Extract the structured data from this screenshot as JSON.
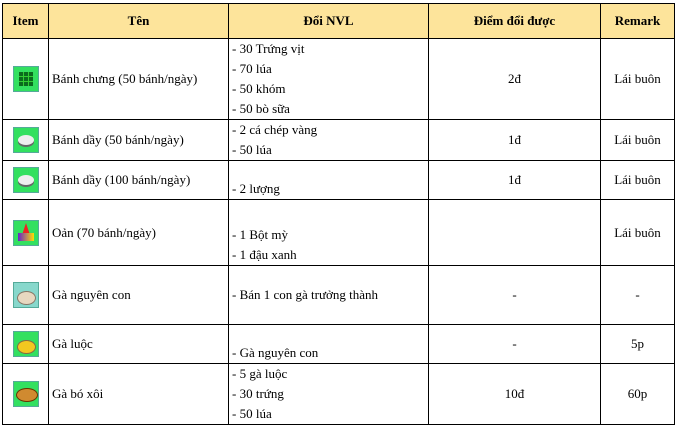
{
  "headers": {
    "item": "Item",
    "ten": "Tên",
    "nvl": "Đổi NVL",
    "diem": "Điểm đổi được",
    "remark": "Remark"
  },
  "rows": [
    {
      "icon": "banh-chung-icon",
      "ten": "Bánh chưng (50 bánh/ngày)",
      "nvl": [
        "- 30 Trứng vịt",
        "- 70 lúa",
        "- 50 khóm",
        "- 50 bò sữa"
      ],
      "diem": "2đ",
      "remark": "Lái buôn"
    },
    {
      "icon": "banh-day-icon",
      "ten": "Bánh dầy  (50 bánh/ngày)",
      "nvl": [
        "- 2 cá chép vàng",
        "- 50 lúa"
      ],
      "diem": "1đ",
      "remark": "Lái buôn"
    },
    {
      "icon": "banh-day-icon",
      "ten": "Bánh dầy  (100 bánh/ngày)",
      "nvl": [
        "- 2 lượng"
      ],
      "diem": "1đ",
      "remark": "Lái buôn"
    },
    {
      "icon": "oan-cake-icon",
      "ten": "Oản (70 bánh/ngày)",
      "nvl": [
        "- 1 Bột mỳ",
        "- 1 đậu xanh"
      ],
      "diem": "",
      "remark": "Lái buôn"
    },
    {
      "icon": "raw-chicken-icon",
      "ten": "Gà nguyên con",
      "nvl": [
        "- Bán 1 con gà trưởng thành"
      ],
      "diem": "-",
      "remark": "-"
    },
    {
      "icon": "boiled-chicken-icon",
      "ten": "Gà luộc",
      "nvl": [
        "- Gà nguyên con"
      ],
      "diem": "-",
      "remark": "5p"
    },
    {
      "icon": "chicken-sticky-rice-icon",
      "ten": "Gà bó xôi",
      "nvl": [
        "- 5 gà luộc",
        "- 30 trứng",
        "- 50 lúa"
      ],
      "diem": "10đ",
      "remark": "60p"
    }
  ],
  "colors": {
    "header_bg": "#fde49b",
    "icon_bg_green": "#33e060",
    "icon_bg_teal": "#88d8cc"
  }
}
